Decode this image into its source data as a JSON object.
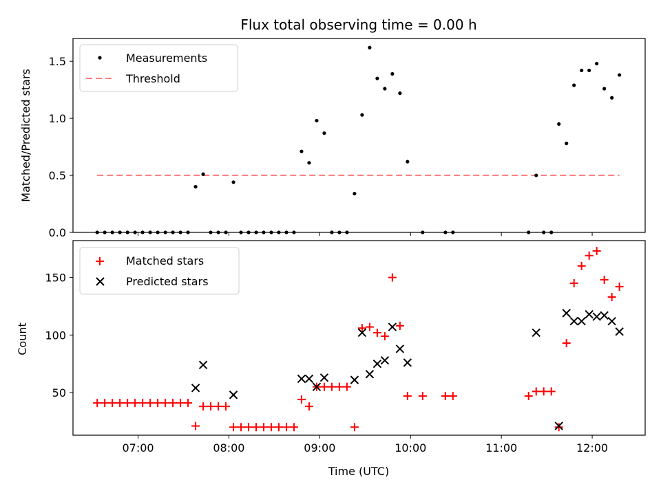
{
  "chart_data": [
    {
      "type": "scatter",
      "title": "Flux total observing time = 0.00 h",
      "xlabel": "",
      "ylabel": "Matched/Predicted stars",
      "ylim": [
        0,
        1.7
      ],
      "yticks": [
        "0.0",
        "0.5",
        "1.0",
        "1.5"
      ],
      "legend": {
        "placement": "top-left",
        "entries": [
          "Measurements",
          "Threshold"
        ]
      },
      "threshold": {
        "name": "Threshold",
        "value": 0.5,
        "x_start": "06:33",
        "x_end": "12:18",
        "color": "#ff8080"
      },
      "series": [
        {
          "name": "Measurements",
          "color": "#000000",
          "points": [
            [
              "06:33",
              0
            ],
            [
              "06:38",
              0
            ],
            [
              "06:43",
              0
            ],
            [
              "06:48",
              0
            ],
            [
              "06:53",
              0
            ],
            [
              "06:58",
              0
            ],
            [
              "07:03",
              0
            ],
            [
              "07:08",
              0
            ],
            [
              "07:13",
              0
            ],
            [
              "07:18",
              0
            ],
            [
              "07:23",
              0
            ],
            [
              "07:28",
              0
            ],
            [
              "07:33",
              0
            ],
            [
              "07:38",
              0.4
            ],
            [
              "07:43",
              0.51
            ],
            [
              "07:48",
              0
            ],
            [
              "07:53",
              0
            ],
            [
              "07:58",
              0
            ],
            [
              "08:03",
              0.44
            ],
            [
              "08:08",
              0
            ],
            [
              "08:13",
              0
            ],
            [
              "08:18",
              0
            ],
            [
              "08:23",
              0
            ],
            [
              "08:28",
              0
            ],
            [
              "08:33",
              0
            ],
            [
              "08:38",
              0
            ],
            [
              "08:43",
              0
            ],
            [
              "08:48",
              0.71
            ],
            [
              "08:53",
              0.61
            ],
            [
              "08:58",
              0.98
            ],
            [
              "09:03",
              0.87
            ],
            [
              "09:08",
              0
            ],
            [
              "09:13",
              0
            ],
            [
              "09:18",
              0
            ],
            [
              "09:23",
              0.34
            ],
            [
              "09:28",
              1.03
            ],
            [
              "09:33",
              1.62
            ],
            [
              "09:38",
              1.35
            ],
            [
              "09:43",
              1.26
            ],
            [
              "09:48",
              1.39
            ],
            [
              "09:53",
              1.22
            ],
            [
              "09:58",
              0.62
            ],
            [
              "10:08",
              0
            ],
            [
              "10:23",
              0
            ],
            [
              "10:28",
              0
            ],
            [
              "11:18",
              0
            ],
            [
              "11:23",
              0.5
            ],
            [
              "11:28",
              0
            ],
            [
              "11:33",
              0
            ],
            [
              "11:38",
              0.95
            ],
            [
              "11:43",
              0.78
            ],
            [
              "11:48",
              1.29
            ],
            [
              "11:53",
              1.42
            ],
            [
              "11:58",
              1.42
            ],
            [
              "12:03",
              1.48
            ],
            [
              "12:08",
              1.26
            ],
            [
              "12:13",
              1.18
            ],
            [
              "12:18",
              1.38
            ]
          ]
        }
      ]
    },
    {
      "type": "scatter",
      "title": "",
      "xlabel": "Time (UTC)",
      "ylabel": "Count",
      "ylim": [
        13,
        182
      ],
      "yticks": [
        "50",
        "100",
        "150"
      ],
      "xticks": [
        "07:00",
        "08:00",
        "09:00",
        "10:00",
        "11:00",
        "12:00"
      ],
      "legend": {
        "placement": "top-left",
        "entries": [
          "Matched stars",
          "Predicted stars"
        ]
      },
      "series": [
        {
          "name": "Matched stars",
          "marker": "+",
          "color": "#ff0000",
          "points": [
            [
              "06:33",
              41
            ],
            [
              "06:38",
              41
            ],
            [
              "06:43",
              41
            ],
            [
              "06:48",
              41
            ],
            [
              "06:53",
              41
            ],
            [
              "06:58",
              41
            ],
            [
              "07:03",
              41
            ],
            [
              "07:08",
              41
            ],
            [
              "07:13",
              41
            ],
            [
              "07:18",
              41
            ],
            [
              "07:23",
              41
            ],
            [
              "07:28",
              41
            ],
            [
              "07:33",
              41
            ],
            [
              "07:38",
              21
            ],
            [
              "07:43",
              38
            ],
            [
              "07:48",
              38
            ],
            [
              "07:53",
              38
            ],
            [
              "07:58",
              38
            ],
            [
              "08:03",
              20
            ],
            [
              "08:08",
              20
            ],
            [
              "08:13",
              20
            ],
            [
              "08:18",
              20
            ],
            [
              "08:23",
              20
            ],
            [
              "08:28",
              20
            ],
            [
              "08:33",
              20
            ],
            [
              "08:38",
              20
            ],
            [
              "08:43",
              20
            ],
            [
              "08:48",
              44
            ],
            [
              "08:53",
              38
            ],
            [
              "08:58",
              55
            ],
            [
              "09:03",
              55
            ],
            [
              "09:08",
              55
            ],
            [
              "09:13",
              55
            ],
            [
              "09:18",
              55
            ],
            [
              "09:23",
              20
            ],
            [
              "09:28",
              106
            ],
            [
              "09:33",
              107
            ],
            [
              "09:38",
              102
            ],
            [
              "09:43",
              99
            ],
            [
              "09:48",
              150
            ],
            [
              "09:53",
              108
            ],
            [
              "09:58",
              47
            ],
            [
              "10:08",
              47
            ],
            [
              "10:23",
              47
            ],
            [
              "10:28",
              47
            ],
            [
              "11:18",
              47
            ],
            [
              "11:23",
              51
            ],
            [
              "11:28",
              51
            ],
            [
              "11:33",
              51
            ],
            [
              "11:38",
              20
            ],
            [
              "11:43",
              93
            ],
            [
              "11:48",
              145
            ],
            [
              "11:53",
              160
            ],
            [
              "11:58",
              169
            ],
            [
              "12:03",
              173
            ],
            [
              "12:08",
              148
            ],
            [
              "12:13",
              133
            ],
            [
              "12:18",
              142
            ]
          ]
        },
        {
          "name": "Predicted stars",
          "marker": "x",
          "color": "#000000",
          "points": [
            [
              "07:38",
              54
            ],
            [
              "07:43",
              74
            ],
            [
              "08:03",
              48
            ],
            [
              "08:48",
              62
            ],
            [
              "08:53",
              62
            ],
            [
              "08:58",
              55
            ],
            [
              "09:03",
              63
            ],
            [
              "09:23",
              61
            ],
            [
              "09:28",
              102
            ],
            [
              "09:33",
              66
            ],
            [
              "09:38",
              75
            ],
            [
              "09:43",
              78
            ],
            [
              "09:48",
              107
            ],
            [
              "09:53",
              88
            ],
            [
              "09:58",
              76
            ],
            [
              "11:23",
              102
            ],
            [
              "11:38",
              21
            ],
            [
              "11:43",
              119
            ],
            [
              "11:48",
              112
            ],
            [
              "11:53",
              112
            ],
            [
              "11:58",
              118
            ],
            [
              "12:03",
              116
            ],
            [
              "12:08",
              117
            ],
            [
              "12:13",
              112
            ],
            [
              "12:18",
              103
            ]
          ]
        }
      ]
    }
  ]
}
